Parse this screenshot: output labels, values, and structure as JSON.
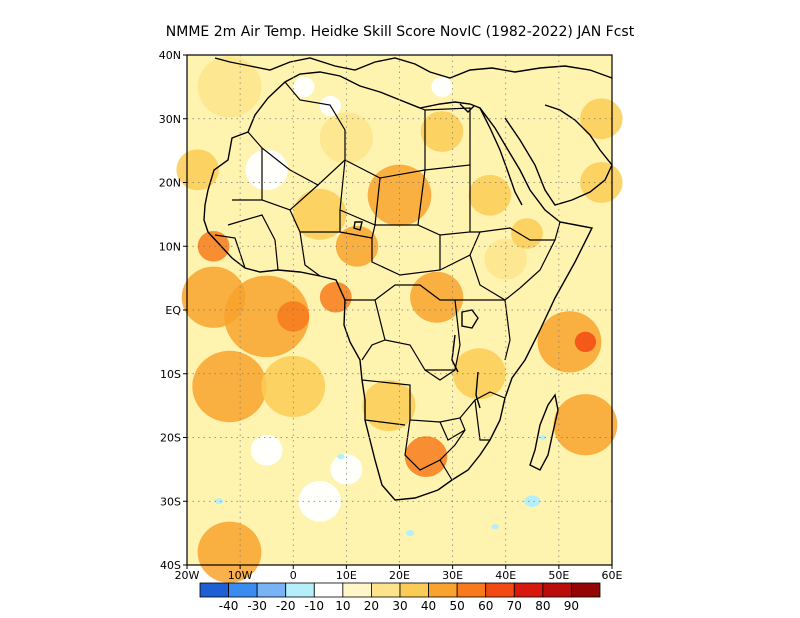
{
  "chart_data": {
    "type": "heatmap",
    "title": "NMME  2m Air Temp. Heidke Skill Score NovIC (1982-2022) JAN Fcst",
    "x_range": [
      -20,
      60
    ],
    "y_range": [
      -40,
      40
    ],
    "x_ticks": [
      {
        "value": -20,
        "label": "20W"
      },
      {
        "value": -10,
        "label": "10W"
      },
      {
        "value": 0,
        "label": "0"
      },
      {
        "value": 10,
        "label": "10E"
      },
      {
        "value": 20,
        "label": "20E"
      },
      {
        "value": 30,
        "label": "30E"
      },
      {
        "value": 40,
        "label": "40E"
      },
      {
        "value": 50,
        "label": "50E"
      },
      {
        "value": 60,
        "label": "60E"
      }
    ],
    "y_ticks": [
      {
        "value": 40,
        "label": "40N"
      },
      {
        "value": 30,
        "label": "30N"
      },
      {
        "value": 20,
        "label": "20N"
      },
      {
        "value": 10,
        "label": "10N"
      },
      {
        "value": 0,
        "label": "EQ"
      },
      {
        "value": -10,
        "label": "10S"
      },
      {
        "value": -20,
        "label": "20S"
      },
      {
        "value": -30,
        "label": "30S"
      },
      {
        "value": -40,
        "label": "40S"
      }
    ],
    "grid": true,
    "colorbar": {
      "colors": [
        "#1f5fd6",
        "#3b8cf0",
        "#78b4f5",
        "#b4effa",
        "#ffffff",
        "#fff7c8",
        "#fde48c",
        "#fbcc55",
        "#f9a22e",
        "#f77a1c",
        "#f34a14",
        "#d8170f",
        "#b90c0b",
        "#940505"
      ],
      "labels": [
        "-40",
        "-30",
        "-20",
        "-10",
        "10",
        "20",
        "30",
        "40",
        "50",
        "60",
        "70",
        "80",
        "90"
      ]
    },
    "regions": [
      {
        "lon": -12,
        "lat": 35,
        "r": 6,
        "level": 20
      },
      {
        "lon": -15,
        "lat": 2,
        "r": 6,
        "level": 40
      },
      {
        "lon": -5,
        "lat": -1,
        "r": 8,
        "level": 40
      },
      {
        "lon": 0,
        "lat": -1,
        "r": 3,
        "level": 50
      },
      {
        "lon": 8,
        "lat": 2,
        "r": 3,
        "level": 50
      },
      {
        "lon": -12,
        "lat": -12,
        "r": 7,
        "level": 40
      },
      {
        "lon": 0,
        "lat": -12,
        "r": 6,
        "level": 30
      },
      {
        "lon": -12,
        "lat": -38,
        "r": 6,
        "level": 40
      },
      {
        "lon": 20,
        "lat": 18,
        "r": 6,
        "level": 40
      },
      {
        "lon": 5,
        "lat": 15,
        "r": 5,
        "level": 30
      },
      {
        "lon": 12,
        "lat": 10,
        "r": 4,
        "level": 40
      },
      {
        "lon": 27,
        "lat": 2,
        "r": 5,
        "level": 40
      },
      {
        "lon": 25,
        "lat": -23,
        "r": 4,
        "level": 50
      },
      {
        "lon": 52,
        "lat": -5,
        "r": 6,
        "level": 40
      },
      {
        "lon": 55,
        "lat": -5,
        "r": 2,
        "level": 60
      },
      {
        "lon": 55,
        "lat": -18,
        "r": 6,
        "level": 40
      },
      {
        "lon": 37,
        "lat": 18,
        "r": 4,
        "level": 30
      },
      {
        "lon": 10,
        "lat": 27,
        "r": 5,
        "level": 20
      },
      {
        "lon": 28,
        "lat": 28,
        "r": 4,
        "level": 30
      },
      {
        "lon": 40,
        "lat": 8,
        "r": 4,
        "level": 20
      },
      {
        "lon": 44,
        "lat": 12,
        "r": 3,
        "level": 30
      },
      {
        "lon": 58,
        "lat": 30,
        "r": 4,
        "level": 30
      },
      {
        "lon": 58,
        "lat": 20,
        "r": 4,
        "level": 30
      },
      {
        "lon": 18,
        "lat": -15,
        "r": 5,
        "level": 30
      },
      {
        "lon": 35,
        "lat": -10,
        "r": 5,
        "level": 30
      },
      {
        "lon": -18,
        "lat": 22,
        "r": 4,
        "level": 30
      },
      {
        "lon": -15,
        "lat": 10,
        "r": 3,
        "level": 50
      }
    ],
    "white_areas": [
      {
        "lon": -5,
        "lat": 22,
        "r": 4
      },
      {
        "lon": 2,
        "lat": 35,
        "r": 2
      },
      {
        "lon": 7,
        "lat": 32,
        "r": 2
      },
      {
        "lon": 5,
        "lat": -30,
        "r": 4
      },
      {
        "lon": 10,
        "lat": -25,
        "r": 3
      },
      {
        "lon": -5,
        "lat": -22,
        "r": 3
      },
      {
        "lon": 28,
        "lat": 35,
        "r": 2
      }
    ],
    "negative_areas": [
      {
        "lon": 9,
        "lat": -23,
        "r": 0.7,
        "level": -10
      },
      {
        "lon": 22,
        "lat": -35,
        "r": 0.8,
        "level": -10
      },
      {
        "lon": 45,
        "lat": -30,
        "r": 1.5,
        "level": -10
      },
      {
        "lon": 47,
        "lat": -20,
        "r": 0.6,
        "level": -10
      },
      {
        "lon": 38,
        "lat": -34,
        "r": 0.7,
        "level": -10
      },
      {
        "lon": -14,
        "lat": -30,
        "r": 0.8,
        "level": -10
      }
    ]
  }
}
